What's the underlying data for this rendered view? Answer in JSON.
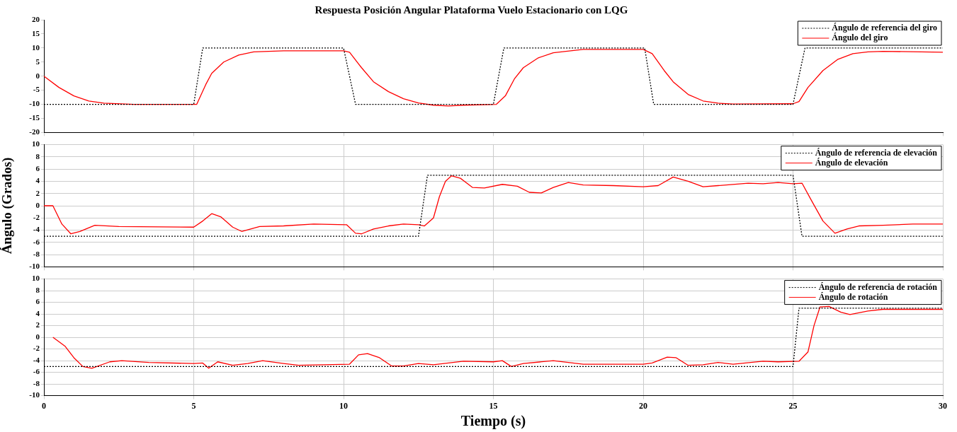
{
  "chart_data": [
    {
      "type": "line",
      "title": "Respuesta Posición Angular Plataforma Vuelo Estacionario con LQG",
      "xlim": [
        0,
        30
      ],
      "xticks": [
        0,
        5,
        10,
        15,
        20,
        25,
        30
      ],
      "ylim": [
        -20,
        20
      ],
      "yticks": [
        -20,
        -15,
        -10,
        -5,
        0,
        5,
        10,
        15,
        20
      ],
      "grid": false,
      "legend": "top right",
      "tick_labels": "y",
      "marker": "none",
      "series": [
        {
          "name": "Ángulo de referencia del giro",
          "color": "#000000",
          "line_style": "dotted",
          "x": [
            0,
            5.0,
            5.3,
            10.0,
            10.4,
            15.0,
            15.35,
            20.05,
            20.35,
            25.0,
            25.4,
            30
          ],
          "values": [
            -10,
            -10,
            10,
            10,
            -10,
            -10,
            10,
            10,
            -10,
            -10,
            10,
            10
          ]
        },
        {
          "name": "Ángulo del giro",
          "color": "#ff0000",
          "line_style": "solid",
          "x": [
            0,
            0.5,
            1,
            1.5,
            2,
            3,
            5.1,
            5.4,
            5.6,
            6,
            6.5,
            7,
            8,
            10,
            10.2,
            10.6,
            11,
            11.5,
            12,
            12.5,
            13,
            13.5,
            14,
            15.1,
            15.4,
            15.7,
            16,
            16.5,
            17,
            18,
            20,
            20.3,
            20.7,
            21,
            21.5,
            22,
            22.5,
            23,
            25,
            25.2,
            25.5,
            26,
            26.5,
            27,
            27.5,
            28,
            30
          ],
          "values": [
            0,
            -4,
            -7,
            -8.8,
            -9.6,
            -10,
            -10,
            -3,
            1,
            5,
            7.5,
            8.6,
            9,
            9,
            8.5,
            3,
            -2,
            -5.5,
            -8,
            -9.5,
            -10.3,
            -10.6,
            -10.3,
            -10,
            -7,
            -1,
            3,
            6.5,
            8.3,
            9.5,
            9.5,
            8,
            2,
            -2,
            -6.5,
            -8.8,
            -9.6,
            -9.9,
            -9.8,
            -9,
            -4,
            2,
            6,
            8,
            8.6,
            8.8,
            8.5
          ]
        }
      ]
    },
    {
      "type": "line",
      "ylabel": "Ángulo (Grados)",
      "xlim": [
        0,
        30
      ],
      "xticks": [
        0,
        5,
        10,
        15,
        20,
        25,
        30
      ],
      "ylim": [
        -10,
        10
      ],
      "yticks": [
        -10,
        -8,
        -6,
        -4,
        -2,
        0,
        2,
        4,
        6,
        8,
        10
      ],
      "grid": true,
      "legend": "top right",
      "tick_labels": "y",
      "marker": "none",
      "series": [
        {
          "name": "Ángulo de referencia de elevación",
          "color": "#000000",
          "line_style": "dotted",
          "x": [
            0,
            12.5,
            12.8,
            25.0,
            25.3,
            30
          ],
          "values": [
            -5,
            -5,
            5,
            5,
            -5,
            -5
          ]
        },
        {
          "name": "Ángulo de elevación",
          "color": "#ff0000",
          "line_style": "solid",
          "x": [
            0,
            0.3,
            0.6,
            0.9,
            1.2,
            1.7,
            2.5,
            5,
            5.3,
            5.6,
            5.9,
            6.3,
            6.6,
            7.2,
            8,
            9,
            10.1,
            10.4,
            10.6,
            11,
            11.5,
            12,
            12.5,
            12.7,
            13,
            13.2,
            13.4,
            13.6,
            13.9,
            14.3,
            14.7,
            15.3,
            15.8,
            16.2,
            16.6,
            17,
            17.5,
            18,
            19,
            20,
            20.5,
            21,
            21.5,
            22,
            22.5,
            23.5,
            24,
            24.5,
            25,
            25.3,
            25.6,
            26,
            26.4,
            26.8,
            27.2,
            28,
            29,
            30
          ],
          "values": [
            0,
            0,
            -3,
            -4.6,
            -4.2,
            -3.2,
            -3.4,
            -3.5,
            -2.5,
            -1.3,
            -1.8,
            -3.5,
            -4.2,
            -3.4,
            -3.3,
            -3,
            -3.1,
            -4.5,
            -4.6,
            -3.8,
            -3.3,
            -3,
            -3.1,
            -3.3,
            -2,
            1.5,
            4,
            4.9,
            4.5,
            3,
            2.9,
            3.5,
            3.2,
            2.2,
            2.1,
            3,
            3.8,
            3.4,
            3.3,
            3.1,
            3.3,
            4.7,
            4,
            3.1,
            3.3,
            3.7,
            3.6,
            3.8,
            3.6,
            3.7,
            1,
            -2.5,
            -4.5,
            -3.8,
            -3.3,
            -3.2,
            -3,
            -3
          ]
        }
      ]
    },
    {
      "type": "line",
      "xlabel": "Tiempo (s)",
      "xlim": [
        0,
        30
      ],
      "xticks": [
        0,
        5,
        10,
        15,
        20,
        25,
        30
      ],
      "ylim": [
        -10,
        10
      ],
      "yticks": [
        -10,
        -8,
        -6,
        -4,
        -2,
        0,
        2,
        4,
        6,
        8,
        10
      ],
      "grid": true,
      "legend": "top right",
      "marker": "none",
      "series": [
        {
          "name": "Ángulo de referencia de rotación",
          "color": "#000000",
          "line_style": "dotted",
          "x": [
            0,
            25.0,
            25.2,
            30
          ],
          "values": [
            -5,
            -5,
            5,
            5
          ]
        },
        {
          "name": "Ángulo de rotación",
          "color": "#ff0000",
          "line_style": "solid",
          "x": [
            0.3,
            0.7,
            1.0,
            1.3,
            1.6,
            2.2,
            2.6,
            3.5,
            5,
            5.3,
            5.5,
            5.8,
            6.3,
            6.8,
            7.3,
            8,
            8.5,
            10.2,
            10.5,
            10.8,
            11.2,
            11.6,
            12,
            12.5,
            13,
            14,
            15,
            15.3,
            15.6,
            16,
            17,
            18,
            20,
            20.3,
            20.8,
            21.1,
            21.5,
            22,
            22.5,
            23,
            24,
            24.5,
            25.2,
            25.5,
            25.7,
            25.9,
            26.2,
            26.6,
            26.9,
            27.5,
            28,
            29,
            30
          ],
          "values": [
            0,
            -1.5,
            -3.5,
            -5,
            -5.3,
            -4.2,
            -4,
            -4.3,
            -4.5,
            -4.4,
            -5.3,
            -4.2,
            -4.8,
            -4.5,
            -4,
            -4.5,
            -4.8,
            -4.6,
            -3,
            -2.8,
            -3.5,
            -4.9,
            -4.9,
            -4.5,
            -4.7,
            -4.1,
            -4.2,
            -4,
            -5,
            -4.5,
            -4,
            -4.6,
            -4.6,
            -4.4,
            -3.4,
            -3.5,
            -4.8,
            -4.7,
            -4.3,
            -4.6,
            -4.1,
            -4.2,
            -4.1,
            -2.5,
            2,
            5.2,
            5.3,
            4.3,
            3.9,
            4.5,
            4.8,
            4.8,
            4.8
          ]
        }
      ]
    }
  ]
}
